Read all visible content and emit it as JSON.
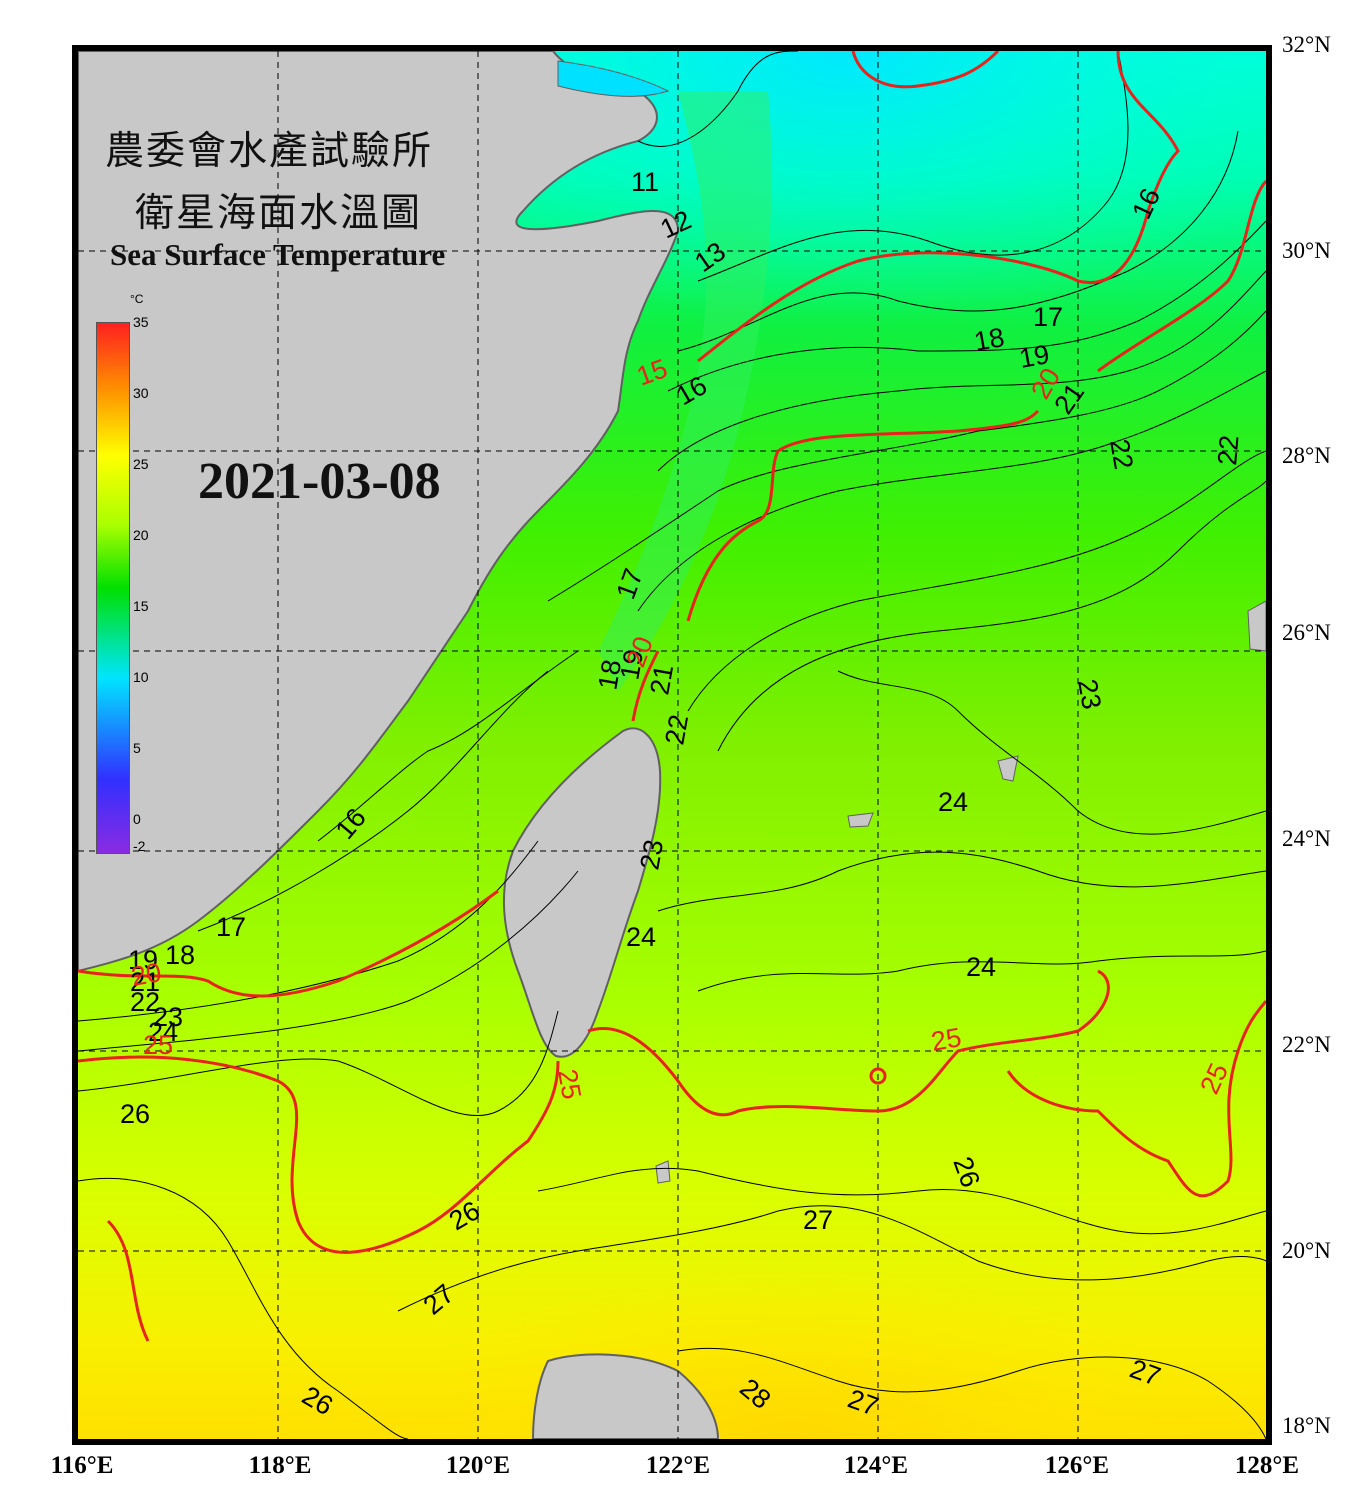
{
  "title": {
    "line1": "農委會水產試驗所",
    "line2": "衛星海面水溫圖",
    "english": "Sea Surface Temperature"
  },
  "date": "2021-03-08",
  "colorbar": {
    "unit": "°C",
    "ticks": [
      "35",
      "30",
      "25",
      "20",
      "15",
      "10",
      "5",
      "0",
      "-2"
    ]
  },
  "lat_labels": [
    "32°N",
    "30°N",
    "28°N",
    "26°N",
    "24°N",
    "22°N",
    "20°N",
    "18°N"
  ],
  "lon_labels": [
    "116°E",
    "118°E",
    "120°E",
    "122°E",
    "124°E",
    "126°E",
    "128°E"
  ],
  "isotherm_labels": {
    "black": [
      "11",
      "12",
      "13",
      "16",
      "17",
      "18",
      "19",
      "21",
      "22",
      "22",
      "16",
      "17",
      "18",
      "19",
      "21",
      "22",
      "23",
      "23",
      "24",
      "24",
      "24",
      "16",
      "17",
      "18",
      "19",
      "21",
      "22",
      "23",
      "24",
      "26",
      "26",
      "26",
      "27",
      "27",
      "28",
      "27",
      "27",
      "26"
    ],
    "red": [
      "15",
      "20",
      "20",
      "20",
      "25",
      "25",
      "25",
      "25"
    ]
  },
  "colors": {
    "land": "#c8c8c8",
    "coast": "#606060",
    "isotherm_major": "#e8231c",
    "isotherm_minor": "#000000",
    "grid": "#000000"
  }
}
